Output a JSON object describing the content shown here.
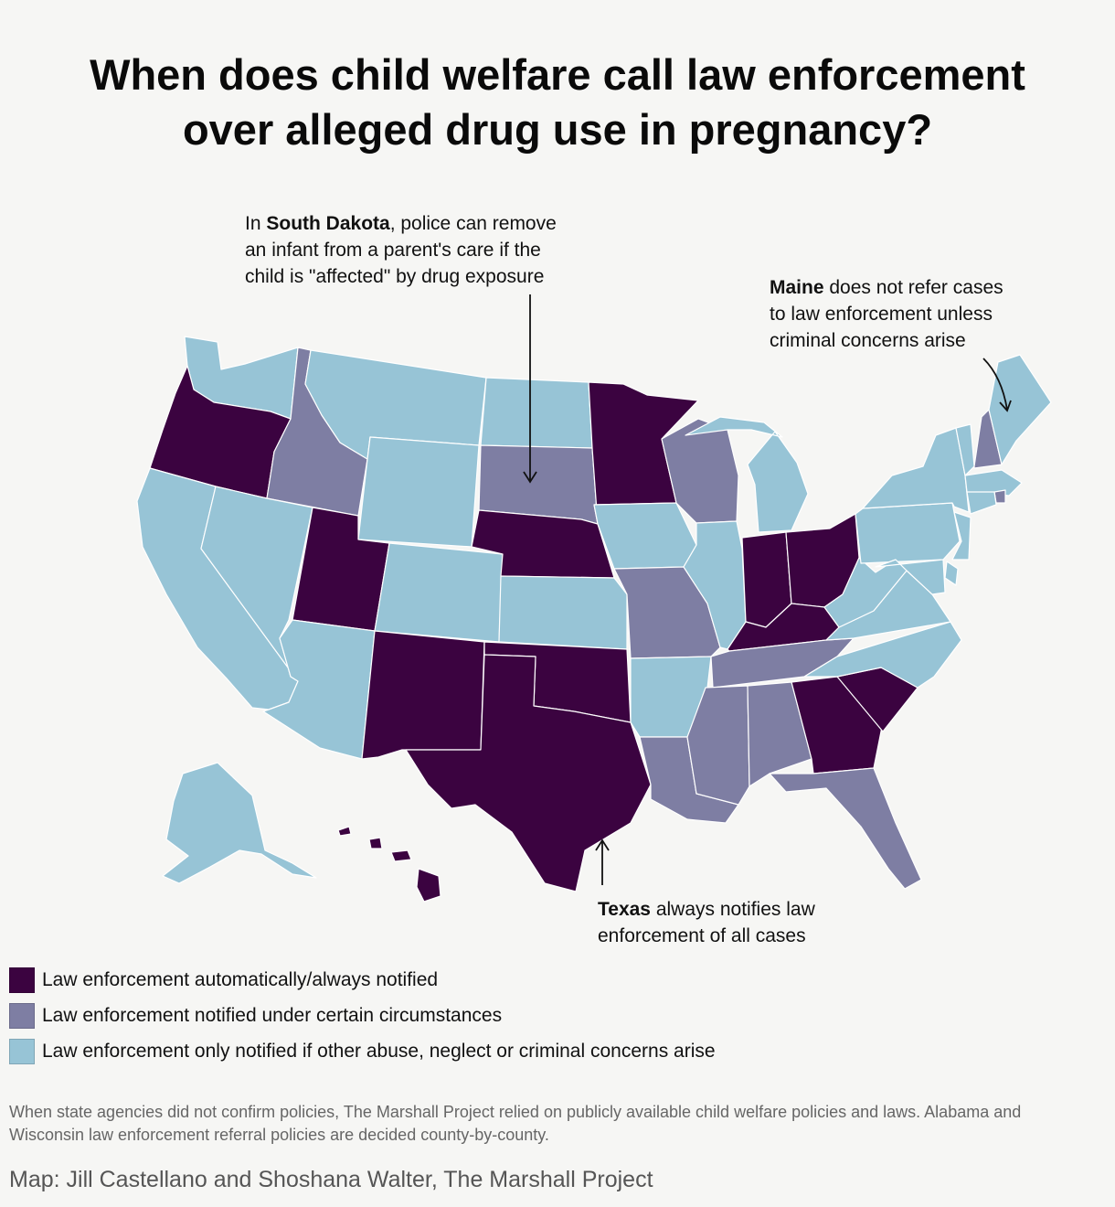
{
  "title": {
    "line1": "When does child welfare call law enforcement",
    "line2": "over alleged drug use in pregnancy?"
  },
  "colors": {
    "always": "#3b0340",
    "certain": "#7e7ea3",
    "other": "#97c4d6",
    "border": "#ffffff",
    "background": "#f6f6f4"
  },
  "annotations": {
    "south_dakota": {
      "pre": "In ",
      "bold": "South Dakota",
      "post": ", police can remove",
      "line2": "an infant from a parent's care if the",
      "line3": "child is \"affected\" by drug exposure"
    },
    "maine": {
      "bold": "Maine",
      "post": " does not refer cases",
      "line2": "to law enforcement unless",
      "line3": "criminal concerns arise"
    },
    "texas": {
      "bold": "Texas",
      "post": " always notifies law",
      "line2": "enforcement of all cases"
    }
  },
  "legend": [
    {
      "key": "always",
      "label": "Law enforcement automatically/always notified"
    },
    {
      "key": "certain",
      "label": "Law enforcement notified under certain circumstances"
    },
    {
      "key": "other",
      "label": "Law enforcement only notified if other abuse, neglect or criminal concerns arise"
    }
  ],
  "states": {
    "WA": "other",
    "OR": "always",
    "CA": "other",
    "ID": "certain",
    "NV": "other",
    "MT": "other",
    "WY": "other",
    "UT": "always",
    "AZ": "other",
    "CO": "other",
    "NM": "always",
    "ND": "other",
    "SD": "certain",
    "NE": "always",
    "KS": "other",
    "OK": "always",
    "TX": "always",
    "MN": "always",
    "IA": "other",
    "MO": "certain",
    "AR": "other",
    "LA": "certain",
    "WI": "certain",
    "IL": "other",
    "MI": "other",
    "IN": "always",
    "OH": "always",
    "KY": "always",
    "TN": "certain",
    "MS": "certain",
    "AL": "certain",
    "GA": "always",
    "FL": "certain",
    "SC": "always",
    "NC": "other",
    "VA": "other",
    "WV": "other",
    "PA": "other",
    "NY": "other",
    "VT": "other",
    "NH": "certain",
    "ME": "other",
    "MA": "other",
    "RI": "certain",
    "CT": "other",
    "NJ": "other",
    "DE": "other",
    "MD": "other",
    "AK": "other",
    "HI": "always"
  },
  "note": "When state agencies did not confirm policies, The Marshall Project relied on publicly available child welfare policies and laws. Alabama and Wisconsin law enforcement referral policies are decided county-by-county.",
  "credit": "Map: Jill Castellano and Shoshana Walter, The Marshall Project"
}
